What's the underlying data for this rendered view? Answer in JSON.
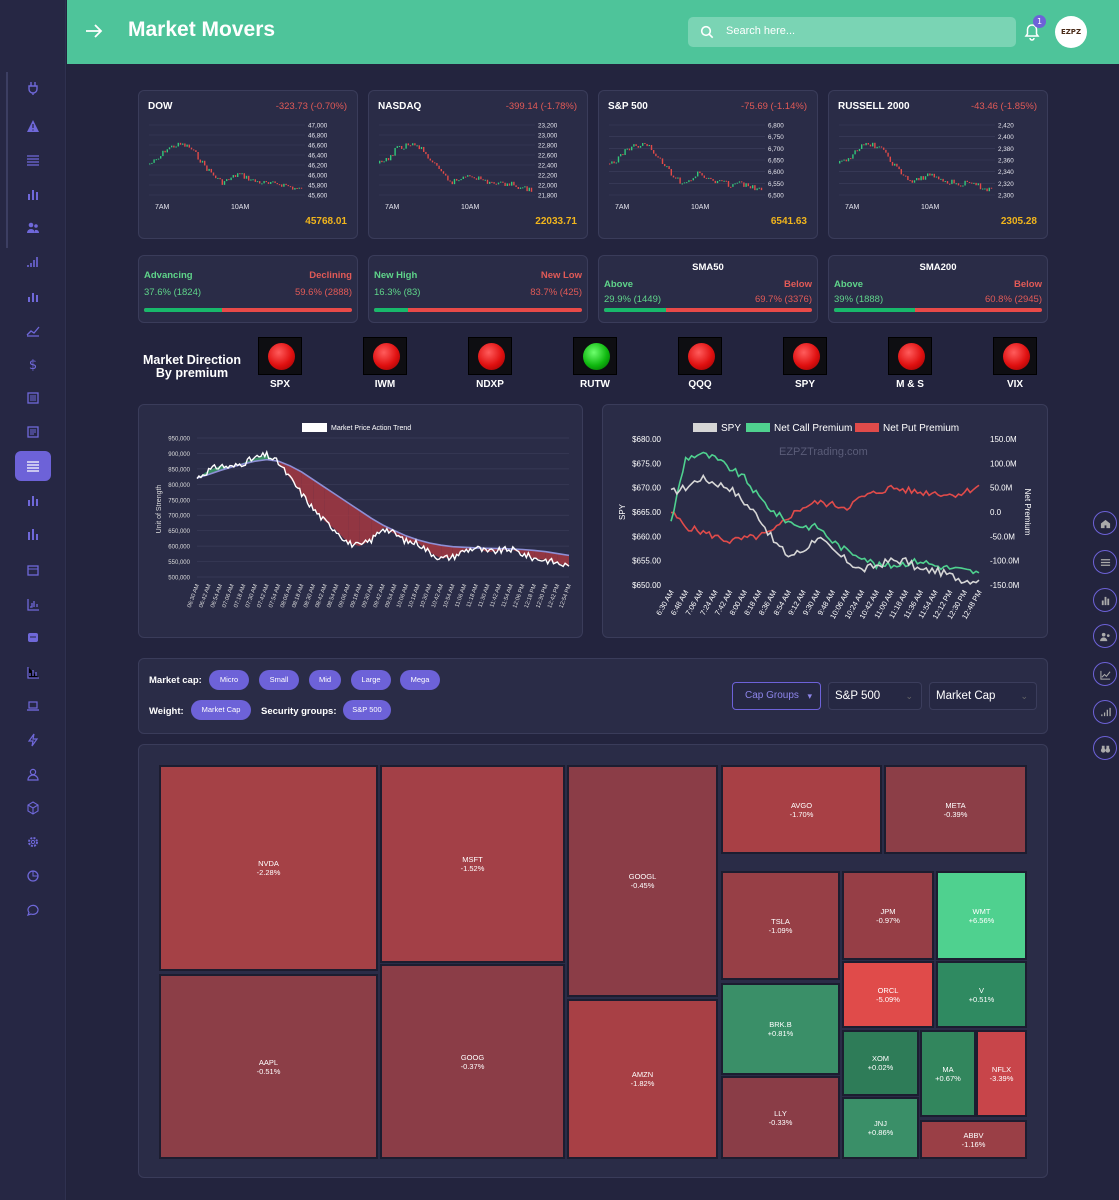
{
  "app": {
    "title": "Market Movers"
  },
  "search": {
    "placeholder": "Search here..."
  },
  "notifications": {
    "count": "1"
  },
  "avatar": {
    "text": "EZPZ"
  },
  "indices": [
    {
      "name": "DOW",
      "change": "-323.73 (-0.70%)",
      "value": "45768.01",
      "yticks": [
        "47,000",
        "46,800",
        "46,600",
        "46,400",
        "46,200",
        "46,000",
        "45,800",
        "45,600"
      ],
      "xticks": [
        "7AM",
        "10AM"
      ]
    },
    {
      "name": "NASDAQ",
      "change": "-399.14 (-1.78%)",
      "value": "22033.71",
      "yticks": [
        "23,200",
        "23,000",
        "22,800",
        "22,600",
        "22,400",
        "22,200",
        "22,000",
        "21,800"
      ],
      "xticks": [
        "7AM",
        "10AM"
      ]
    },
    {
      "name": "S&P 500",
      "change": "-75.69 (-1.14%)",
      "value": "6541.63",
      "yticks": [
        "6,800",
        "6,750",
        "6,700",
        "6,650",
        "6,600",
        "6,550",
        "6,500"
      ],
      "xticks": [
        "7AM",
        "10AM"
      ]
    },
    {
      "name": "RUSSELL 2000",
      "change": "-43.46 (-1.85%)",
      "value": "2305.28",
      "yticks": [
        "2,420",
        "2,400",
        "2,380",
        "2,360",
        "2,340",
        "2,320",
        "2,300"
      ],
      "xticks": [
        "7AM",
        "10AM"
      ]
    }
  ],
  "breadth": [
    {
      "left_label": "Advancing",
      "right_label": "Declining",
      "left_value": "37.6% (1824)",
      "right_value": "59.6% (2888)",
      "fraction": 0.376
    },
    {
      "left_label": "New High",
      "right_label": "New Low",
      "left_value": "16.3% (83)",
      "right_value": "83.7% (425)",
      "fraction": 0.163
    },
    {
      "title": "SMA50",
      "left_label": "Above",
      "right_label": "Below",
      "left_value": "29.9% (1449)",
      "right_value": "69.7% (3376)",
      "fraction": 0.299
    },
    {
      "title": "SMA200",
      "left_label": "Above",
      "right_label": "Below",
      "left_value": "39% (1888)",
      "right_value": "60.8% (2945)",
      "fraction": 0.39
    }
  ],
  "direction": {
    "title": "Market Direction By premium",
    "lights": [
      {
        "label": "SPX",
        "status": "red"
      },
      {
        "label": "IWM",
        "status": "red"
      },
      {
        "label": "NDXP",
        "status": "red"
      },
      {
        "label": "RUTW",
        "status": "green"
      },
      {
        "label": "QQQ",
        "status": "red"
      },
      {
        "label": "SPY",
        "status": "red"
      },
      {
        "label": "M & S",
        "status": "red"
      },
      {
        "label": "VIX",
        "status": "red"
      }
    ]
  },
  "chart_data": [
    {
      "type": "line",
      "title": "Market Price Action Trend",
      "ylabel": "Unit of Strength",
      "yticks": [
        "950,000",
        "900,000",
        "850,000",
        "800,000",
        "750,000",
        "700,000",
        "650,000",
        "600,000",
        "550,000",
        "500,000"
      ],
      "ylim": [
        500000,
        950000
      ],
      "x": [
        "06:30 AM",
        "06:42 AM",
        "06:54 AM",
        "07:06 AM",
        "07:18 AM",
        "07:30 AM",
        "07:42 AM",
        "07:54 AM",
        "08:06 AM",
        "08:18 AM",
        "08:30 AM",
        "08:42 AM",
        "08:54 AM",
        "09:06 AM",
        "09:18 AM",
        "09:30 AM",
        "09:42 AM",
        "09:54 AM",
        "10:06 AM",
        "10:18 AM",
        "10:30 AM",
        "10:42 AM",
        "10:54 AM",
        "11:06 AM",
        "11:18 AM",
        "11:30 AM",
        "11:42 AM",
        "11:54 AM",
        "12:06 PM",
        "12:18 PM",
        "12:30 PM",
        "12:42 PM",
        "12:54 PM"
      ],
      "series": [
        {
          "name": "Price",
          "values": [
            820000,
            845000,
            860000,
            855000,
            870000,
            885000,
            895000,
            870000,
            820000,
            770000,
            720000,
            680000,
            650000,
            610000,
            600000,
            620000,
            660000,
            640000,
            615000,
            610000,
            580000,
            560000,
            565000,
            585000,
            595000,
            580000,
            585000,
            590000,
            575000,
            560000,
            555000,
            545000,
            535000
          ]
        },
        {
          "name": "Trend",
          "values": [
            820000,
            832000,
            845000,
            856000,
            866000,
            875000,
            880000,
            875000,
            860000,
            840000,
            815000,
            790000,
            765000,
            740000,
            715000,
            690000,
            668000,
            650000,
            633000,
            620000,
            610000,
            603000,
            598000,
            596000,
            594000,
            593000,
            592000,
            591000,
            589000,
            586000,
            582000,
            576000,
            570000
          ]
        }
      ]
    },
    {
      "type": "line",
      "legend": [
        "SPY",
        "Net Call Premium",
        "Net Put Premium"
      ],
      "watermark": "EZPZTrading.com",
      "ylabel_left": "SPY",
      "ylabel_right": "Net Premium",
      "yticks_left": [
        "$680.00",
        "$675.00",
        "$670.00",
        "$665.00",
        "$660.00",
        "$655.00",
        "$650.00"
      ],
      "yticks_right": [
        "150.0M",
        "100.0M",
        "50.0M",
        "0.0",
        "-50.0M",
        "-100.0M",
        "-150.0M"
      ],
      "ylim_left": [
        650,
        680
      ],
      "ylim_right": [
        -150,
        150
      ],
      "x": [
        "6:30 AM",
        "6:48 AM",
        "7:06 AM",
        "7:24 AM",
        "7:42 AM",
        "8:00 AM",
        "8:18 AM",
        "8:36 AM",
        "8:54 AM",
        "9:12 AM",
        "9:30 AM",
        "9:48 AM",
        "10:06 AM",
        "10:24 AM",
        "10:42 AM",
        "11:00 AM",
        "11:18 AM",
        "11:36 AM",
        "11:54 AM",
        "12:12 PM",
        "12:30 PM",
        "12:48 PM"
      ],
      "series": [
        {
          "name": "SPY",
          "values": [
            669,
            670,
            672,
            671,
            670,
            667,
            664,
            659,
            656,
            657,
            660,
            657,
            655,
            653,
            654,
            655,
            655,
            653,
            653,
            652,
            651,
            651
          ]
        },
        {
          "name": "Net Call Premium",
          "values": [
            -20,
            110,
            120,
            110,
            90,
            70,
            30,
            0,
            -20,
            -30,
            -30,
            -60,
            -80,
            -90,
            -110,
            -110,
            -105,
            -100,
            -110,
            -115,
            -120,
            -125
          ]
        },
        {
          "name": "Net Put Premium",
          "values": [
            0,
            -30,
            -40,
            -50,
            -60,
            -55,
            -50,
            -40,
            -10,
            10,
            20,
            15,
            10,
            30,
            40,
            50,
            45,
            40,
            40,
            35,
            40,
            55
          ]
        }
      ]
    }
  ],
  "filters": {
    "market_cap_label": "Market cap:",
    "market_caps": [
      "Micro",
      "Small",
      "Mid",
      "Large",
      "Mega"
    ],
    "weight_label": "Weight:",
    "weight_value": "Market Cap",
    "security_label": "Security groups:",
    "security_value": "S&P 500",
    "cap_groups": "Cap Groups",
    "select_index": "S&P 500",
    "select_metric": "Market Cap"
  },
  "heatmap": [
    {
      "ticker": "NVDA",
      "change": "-2.28%",
      "color": "#a54146"
    },
    {
      "ticker": "AAPL",
      "change": "-0.51%",
      "color": "#8c3e47"
    },
    {
      "ticker": "MSFT",
      "change": "-1.52%",
      "color": "#a34047"
    },
    {
      "ticker": "GOOG",
      "change": "-0.37%",
      "color": "#8b3d47"
    },
    {
      "ticker": "GOOGL",
      "change": "-0.45%",
      "color": "#8b3d47"
    },
    {
      "ticker": "AMZN",
      "change": "-1.82%",
      "color": "#a84045"
    },
    {
      "ticker": "AVGO",
      "change": "-1.70%",
      "color": "#a84045"
    },
    {
      "ticker": "META",
      "change": "-0.39%",
      "color": "#8c3e47"
    },
    {
      "ticker": "TSLA",
      "change": "-1.09%",
      "color": "#973f46"
    },
    {
      "ticker": "JPM",
      "change": "-0.97%",
      "color": "#963e46"
    },
    {
      "ticker": "WMT",
      "change": "+6.56%",
      "color": "#4fd18f"
    },
    {
      "ticker": "ORCL",
      "change": "-5.09%",
      "color": "#e04b4a"
    },
    {
      "ticker": "V",
      "change": "+0.51%",
      "color": "#2f8a61"
    },
    {
      "ticker": "BRK.B",
      "change": "+0.81%",
      "color": "#3a8f68"
    },
    {
      "ticker": "XOM",
      "change": "+0.02%",
      "color": "#2e7c58"
    },
    {
      "ticker": "MA",
      "change": "+0.67%",
      "color": "#32865d"
    },
    {
      "ticker": "NFLX",
      "change": "-3.39%",
      "color": "#c8454a"
    },
    {
      "ticker": "LLY",
      "change": "-0.33%",
      "color": "#8a3d47"
    },
    {
      "ticker": "JNJ",
      "change": "+0.86%",
      "color": "#3a8f68"
    },
    {
      "ticker": "ABBV",
      "change": "-1.16%",
      "color": "#9a3f46"
    }
  ]
}
